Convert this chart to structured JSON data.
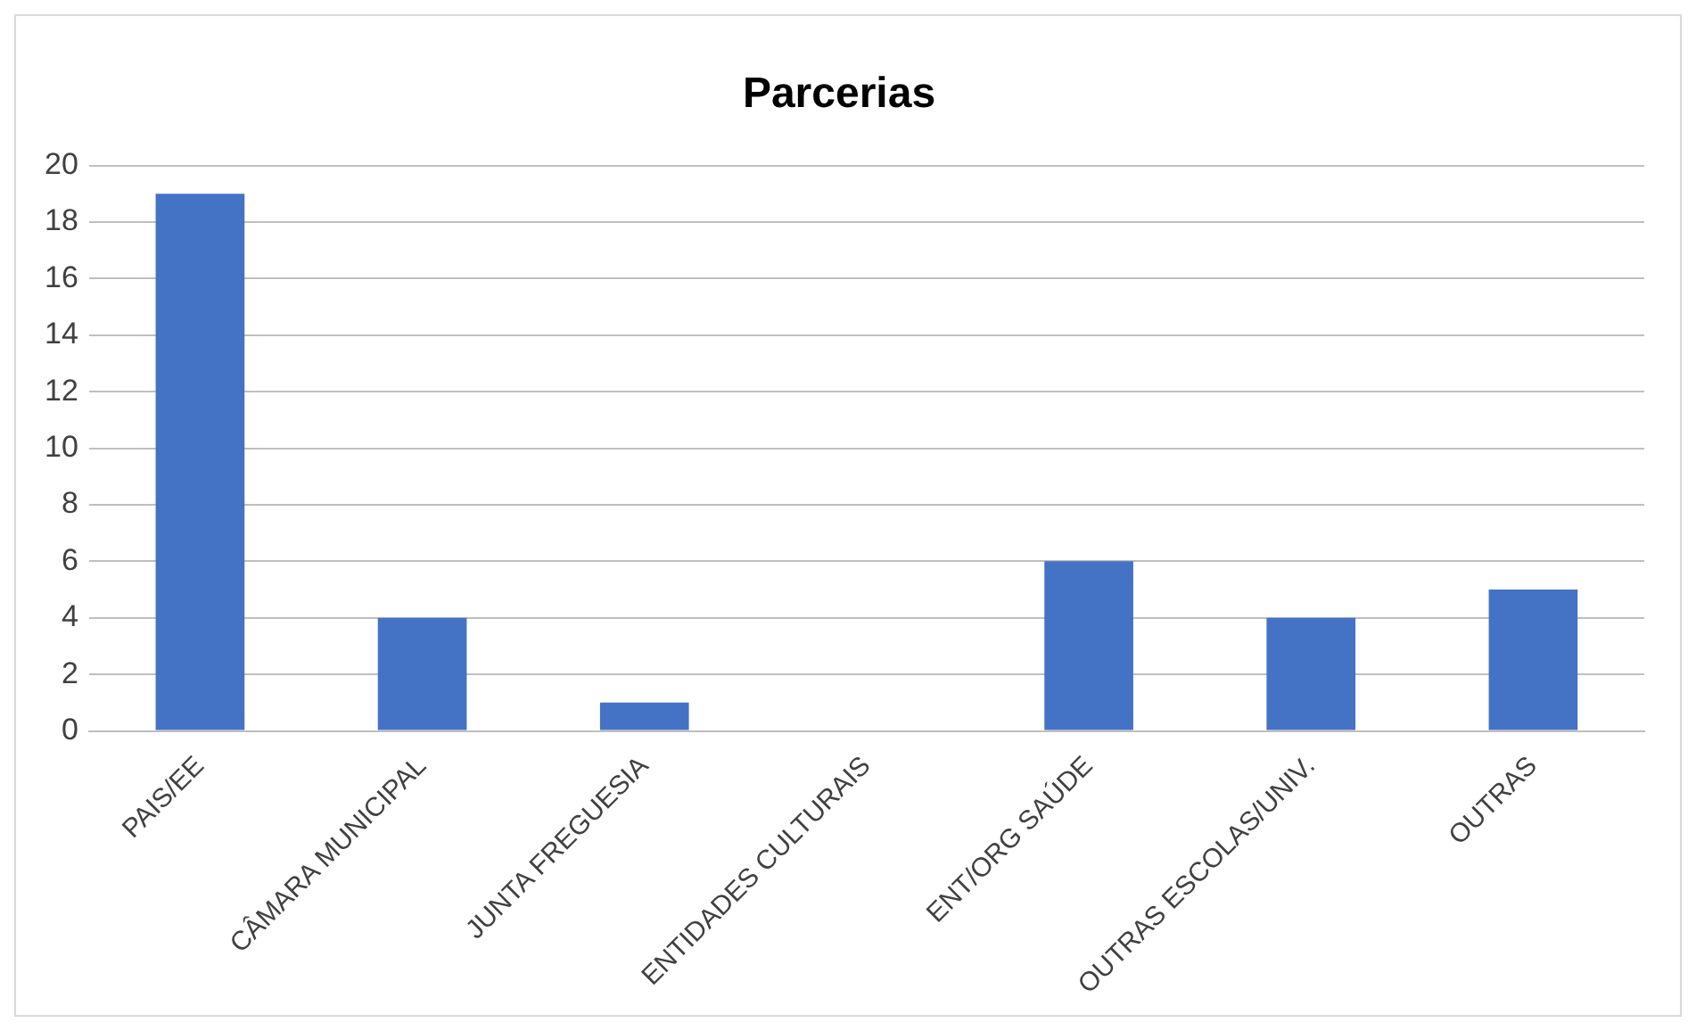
{
  "chart_data": {
    "type": "bar",
    "title": "Parcerias",
    "categories": [
      "PAIS/EE",
      "CÂMARA MUNICIPAL",
      "JUNTA FREGUESIA",
      "ENTIDADES CULTURAIS",
      "ENT/ORG SAÚDE",
      "OUTRAS ESCOLAS/UNIV.",
      "OUTRAS"
    ],
    "values": [
      19,
      4,
      1,
      0,
      6,
      4,
      5
    ],
    "color": "#4472c4",
    "ylim": [
      0,
      20
    ],
    "yticks": [
      0,
      2,
      4,
      6,
      8,
      10,
      12,
      14,
      16,
      18,
      20
    ],
    "grid": "y"
  }
}
